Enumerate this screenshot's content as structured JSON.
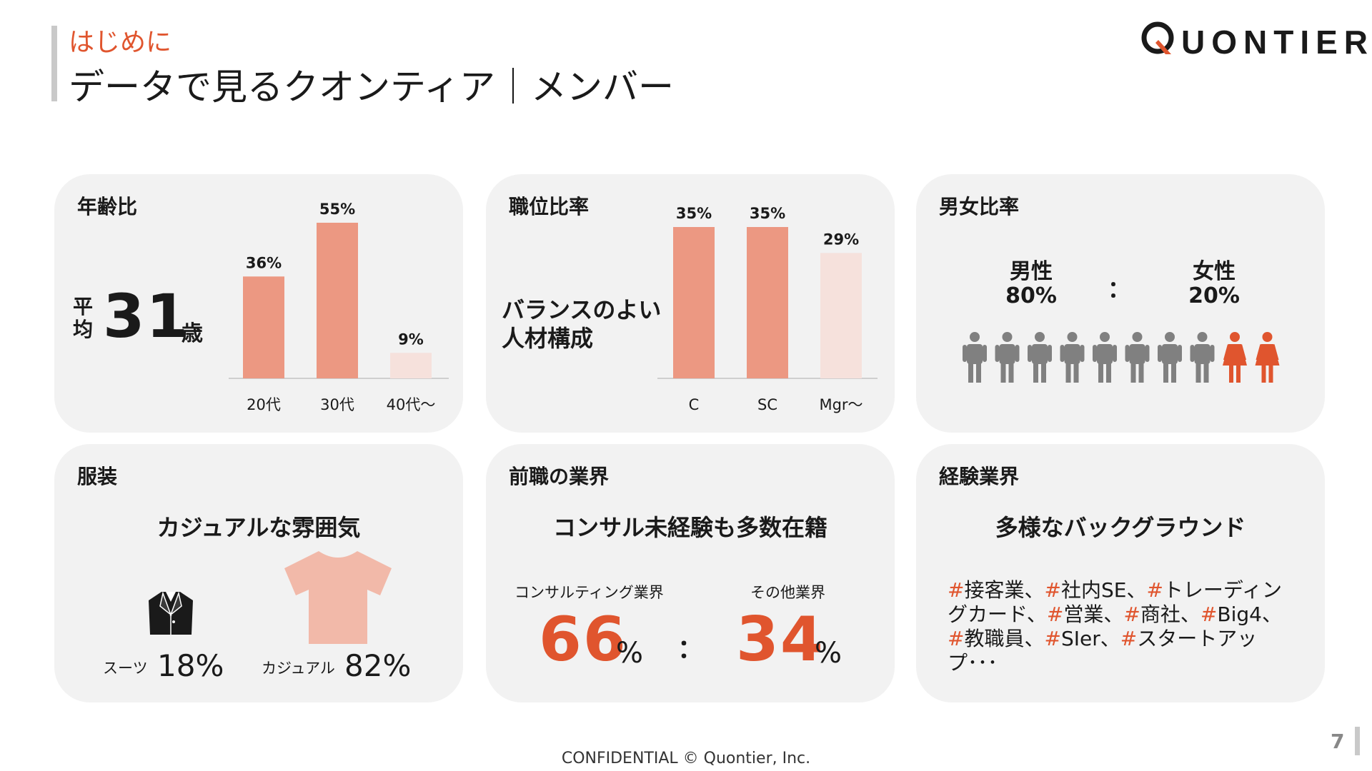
{
  "header": {
    "kicker": "はじめに",
    "title": "データで見るクオンティア｜メンバー",
    "logo_text": "UONTIER",
    "logo_letter": "Q"
  },
  "colors": {
    "accent": "#e0552e",
    "bar": "#ec9882",
    "bar_light": "#f6e1dc",
    "card_bg": "#f2f2f2",
    "male_icon": "#808080",
    "female_icon": "#e0552e"
  },
  "age": {
    "label": "年齢比",
    "avg_label_vertical": "平均",
    "avg_value": "31",
    "avg_unit": "歳"
  },
  "position": {
    "label": "職位比率",
    "note_line1": "バランスのよい",
    "note_line2": "人材構成"
  },
  "gender": {
    "label": "男女比率",
    "male_label": "男性",
    "male_value": "80%",
    "female_label": "女性",
    "female_value": "20%",
    "separator": "：",
    "male_count": 8,
    "female_count": 2
  },
  "dress": {
    "label": "服装",
    "headline": "カジュアルな雰囲気",
    "suit_label": "スーツ",
    "suit_value": "18%",
    "casual_label": "カジュアル",
    "casual_value": "82%",
    "suit_icon": "suit-jacket-icon",
    "casual_icon": "t-shirt-icon"
  },
  "previous_industry": {
    "label": "前職の業界",
    "headline": "コンサル未経験も多数在籍",
    "consulting_label": "コンサルティング業界",
    "consulting_value": "66",
    "other_label": "その他業界",
    "other_value": "34",
    "unit": "%",
    "separator": "："
  },
  "experience": {
    "label": "経験業界",
    "headline": "多様なバックグラウンド",
    "tags": [
      "接客業",
      "社内SE",
      "トレーディングカード",
      "営業",
      "商社",
      "Big4",
      "教職員",
      "SIer",
      "スタートアップ"
    ],
    "trailing": "･･･"
  },
  "chart_data": [
    {
      "type": "bar",
      "categories": [
        "20代",
        "30代",
        "40代〜"
      ],
      "values": [
        36,
        55,
        9
      ],
      "data_labels": [
        "36%",
        "55%",
        "9%"
      ],
      "ylim": [
        0,
        55
      ],
      "highlight": [
        true,
        true,
        false
      ]
    },
    {
      "type": "bar",
      "categories": [
        "C",
        "SC",
        "Mgr〜"
      ],
      "values": [
        35,
        35,
        29
      ],
      "data_labels": [
        "35%",
        "35%",
        "29%"
      ],
      "ylim": [
        0,
        35
      ],
      "highlight": [
        true,
        true,
        false
      ]
    }
  ],
  "footer": {
    "confidential": "CONFIDENTIAL © Quontier, Inc.",
    "page_number": "7"
  }
}
